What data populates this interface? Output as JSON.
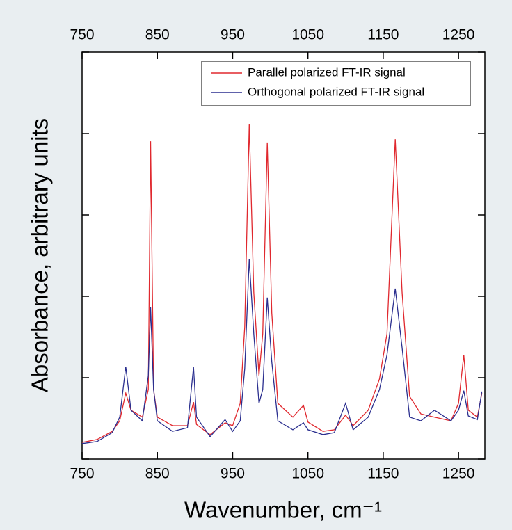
{
  "chart_data": {
    "type": "line",
    "xlabel": "Wavenumber, cm⁻¹",
    "ylabel": "Absorbance, arbitrary units",
    "x": [
      750,
      770,
      790,
      800,
      808,
      815,
      830,
      838,
      841,
      845,
      850,
      870,
      890,
      898,
      902,
      920,
      940,
      950,
      960,
      966,
      972,
      978,
      985,
      990,
      996,
      1002,
      1010,
      1030,
      1044,
      1050,
      1070,
      1085,
      1100,
      1110,
      1130,
      1145,
      1155,
      1166,
      1175,
      1185,
      1200,
      1218,
      1240,
      1250,
      1257,
      1263,
      1275,
      1281
    ],
    "series": [
      {
        "name": "Parallel polarized FT-IR signal",
        "color": "#e0282e",
        "values": [
          4.1,
          4.8,
          6.8,
          9.4,
          16.2,
          12.0,
          10.3,
          17.1,
          78.1,
          17.1,
          10.3,
          8.2,
          8.2,
          14.0,
          8.5,
          6.0,
          8.9,
          8.2,
          13.7,
          32.5,
          82.4,
          41.0,
          20.5,
          30.8,
          77.8,
          35.9,
          13.7,
          10.3,
          13.2,
          9.1,
          6.8,
          7.2,
          10.8,
          8.2,
          12.0,
          19.7,
          30.8,
          78.6,
          41.0,
          15.4,
          11.1,
          10.3,
          9.4,
          13.7,
          25.6,
          12.0,
          10.3,
          16.2
        ]
      },
      {
        "name": "Orthogonal polarized FT-IR signal",
        "color": "#2b2f8f",
        "values": [
          3.8,
          4.3,
          6.5,
          10.3,
          22.7,
          12.0,
          9.4,
          20.5,
          37.3,
          17.1,
          9.4,
          6.8,
          7.7,
          22.6,
          10.3,
          5.5,
          9.7,
          6.8,
          9.4,
          22.2,
          49.2,
          30.8,
          13.7,
          17.1,
          39.7,
          23.9,
          9.4,
          7.2,
          8.9,
          7.2,
          6.0,
          6.5,
          13.7,
          7.2,
          10.3,
          17.1,
          25.6,
          41.9,
          27.4,
          10.3,
          9.4,
          12.0,
          9.4,
          12.0,
          16.8,
          10.6,
          9.7,
          16.6
        ]
      }
    ],
    "xlim": [
      750,
      1285
    ],
    "xticks": [
      750,
      850,
      950,
      1050,
      1150,
      1250
    ],
    "ylim": [
      0,
      100
    ],
    "yticks": [
      0,
      20,
      40,
      60,
      80,
      100
    ],
    "legend": "upper right"
  }
}
